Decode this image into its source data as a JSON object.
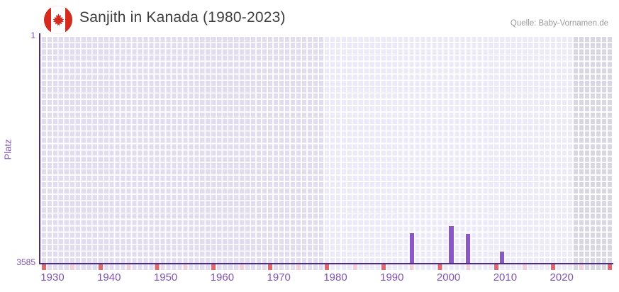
{
  "header": {
    "flag_icon": "canada-flag",
    "title": "Sanjith in Kanada (1980-2023)",
    "source": "Quelle: Baby-Vornamen.de"
  },
  "chart_data": {
    "type": "bar",
    "title": "Sanjith in Kanada (1980-2023)",
    "xlabel": "",
    "ylabel": "Platz",
    "y_axis": {
      "ticks": [
        "1",
        "3585"
      ],
      "min": 1,
      "max": 3585,
      "inverted": true,
      "note": "rank 1 at top, rank 3585 at axis bottom"
    },
    "x_axis": {
      "range_start": 1930,
      "range_end": 2030,
      "tick_labels": [
        "1930",
        "1940",
        "1950",
        "1960",
        "1970",
        "1980",
        "1990",
        "2000",
        "2010",
        "2020"
      ]
    },
    "highlight_period": {
      "start": 1980,
      "end": 2023
    },
    "series": [
      {
        "name": "Platz",
        "points": [
          {
            "year": 1995,
            "rank": 3114
          },
          {
            "year": 2002,
            "rank": 3005
          },
          {
            "year": 2005,
            "rank": 3122
          },
          {
            "year": 2011,
            "rank": 3401
          }
        ]
      }
    ],
    "axis_markers": {
      "decade_years": [
        1930,
        1940,
        1950,
        1960,
        1970,
        1980,
        1990,
        2000,
        2010,
        2020,
        2030
      ],
      "half_decade_years": [
        1935,
        1945,
        1955,
        1965,
        1975,
        1985,
        1995,
        2005,
        2015,
        2025
      ]
    },
    "legend": "none",
    "grid": "on",
    "colors": {
      "bar": "#8b57c6",
      "axis_line": "#4e2b85",
      "tick_text": "#7e55ad",
      "title_text": "#3d3d3d",
      "source_text": "#9b9b9b",
      "band_past": "#e1ddef",
      "band_highlight": "#ece9f8",
      "band_future": "#d9d7e3",
      "marker_decade": "#de6a70",
      "marker_half_decade": "#f1ced9",
      "gridline": "#ffffff",
      "flag_red": "#d52b1e",
      "flag_white": "#ffffff"
    }
  }
}
